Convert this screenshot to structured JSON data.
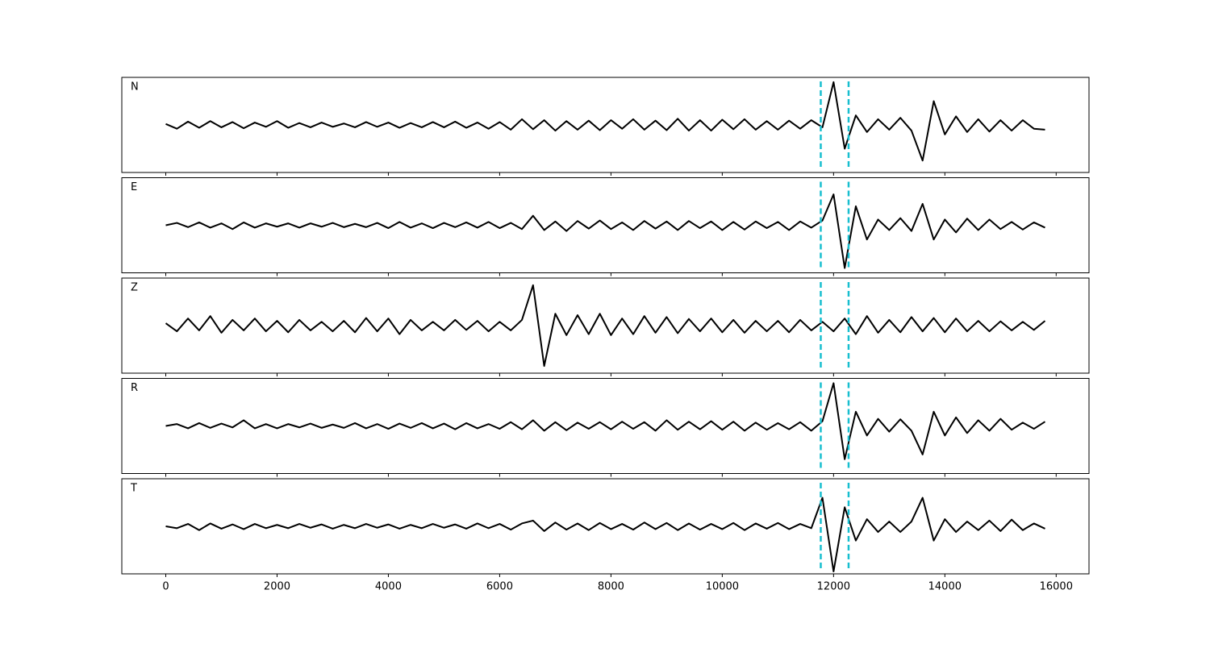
{
  "chart_data": {
    "type": "line",
    "x": [
      0,
      200,
      400,
      600,
      800,
      1000,
      1200,
      1400,
      1600,
      1800,
      2000,
      2200,
      2400,
      2600,
      2800,
      3000,
      3200,
      3400,
      3600,
      3800,
      4000,
      4200,
      4400,
      4600,
      4800,
      5000,
      5200,
      5400,
      5600,
      5800,
      6000,
      6200,
      6400,
      6600,
      6800,
      7000,
      7200,
      7400,
      7600,
      7800,
      8000,
      8200,
      8400,
      8600,
      8800,
      9000,
      9200,
      9400,
      9600,
      9800,
      10000,
      10200,
      10400,
      10600,
      10800,
      11000,
      11200,
      11400,
      11600,
      11800,
      12000,
      12200,
      12400,
      12600,
      12800,
      13000,
      13200,
      13400,
      13600,
      13800,
      14000,
      14200,
      14400,
      14600,
      14800,
      15000,
      15200,
      15400,
      15600,
      15800
    ],
    "series": [
      {
        "name": "N",
        "color": "#000000",
        "values": [
          0.02,
          -0.08,
          0.07,
          -0.06,
          0.08,
          -0.05,
          0.06,
          -0.07,
          0.05,
          -0.04,
          0.08,
          -0.06,
          0.04,
          -0.05,
          0.05,
          -0.04,
          0.03,
          -0.05,
          0.06,
          -0.04,
          0.05,
          -0.06,
          0.04,
          -0.05,
          0.06,
          -0.05,
          0.07,
          -0.06,
          0.05,
          -0.08,
          0.06,
          -0.1,
          0.12,
          -0.09,
          0.1,
          -0.12,
          0.08,
          -0.1,
          0.09,
          -0.11,
          0.1,
          -0.08,
          0.12,
          -0.1,
          0.09,
          -0.11,
          0.13,
          -0.12,
          0.1,
          -0.12,
          0.11,
          -0.09,
          0.12,
          -0.1,
          0.08,
          -0.1,
          0.09,
          -0.08,
          0.1,
          -0.05,
          0.9,
          -0.5,
          0.2,
          -0.15,
          0.12,
          -0.1,
          0.15,
          -0.12,
          -0.75,
          0.5,
          -0.2,
          0.18,
          -0.15,
          0.12,
          -0.14,
          0.1,
          -0.12,
          0.1,
          -0.08,
          -0.1
        ]
      },
      {
        "name": "E",
        "color": "#000000",
        "values": [
          0.0,
          0.05,
          -0.04,
          0.06,
          -0.05,
          0.04,
          -0.08,
          0.06,
          -0.05,
          0.04,
          -0.03,
          0.04,
          -0.05,
          0.04,
          -0.03,
          0.05,
          -0.04,
          0.03,
          -0.04,
          0.05,
          -0.06,
          0.07,
          -0.05,
          0.04,
          -0.06,
          0.05,
          -0.04,
          0.06,
          -0.05,
          0.07,
          -0.06,
          0.05,
          -0.08,
          0.2,
          -0.1,
          0.08,
          -0.12,
          0.09,
          -0.07,
          0.1,
          -0.08,
          0.06,
          -0.1,
          0.09,
          -0.07,
          0.08,
          -0.1,
          0.09,
          -0.06,
          0.08,
          -0.1,
          0.07,
          -0.09,
          0.08,
          -0.06,
          0.07,
          -0.1,
          0.08,
          -0.05,
          0.1,
          0.65,
          -0.9,
          0.4,
          -0.3,
          0.12,
          -0.1,
          0.15,
          -0.12,
          0.45,
          -0.3,
          0.12,
          -0.15,
          0.14,
          -0.1,
          0.12,
          -0.08,
          0.07,
          -0.09,
          0.06,
          -0.05
        ]
      },
      {
        "name": "Z",
        "color": "#000000",
        "values": [
          0.05,
          -0.12,
          0.15,
          -0.1,
          0.2,
          -0.15,
          0.12,
          -0.1,
          0.15,
          -0.12,
          0.1,
          -0.14,
          0.12,
          -0.1,
          0.08,
          -0.12,
          0.1,
          -0.14,
          0.16,
          -0.12,
          0.15,
          -0.18,
          0.12,
          -0.1,
          0.08,
          -0.1,
          0.12,
          -0.09,
          0.1,
          -0.12,
          0.08,
          -0.1,
          0.12,
          0.85,
          -0.85,
          0.25,
          -0.2,
          0.22,
          -0.18,
          0.25,
          -0.2,
          0.15,
          -0.18,
          0.2,
          -0.15,
          0.18,
          -0.16,
          0.14,
          -0.12,
          0.15,
          -0.14,
          0.12,
          -0.15,
          0.1,
          -0.12,
          0.1,
          -0.14,
          0.12,
          -0.1,
          0.08,
          -0.12,
          0.15,
          -0.18,
          0.2,
          -0.15,
          0.12,
          -0.14,
          0.18,
          -0.12,
          0.16,
          -0.14,
          0.15,
          -0.12,
          0.1,
          -0.12,
          0.09,
          -0.1,
          0.08,
          -0.09,
          0.1
        ]
      },
      {
        "name": "R",
        "color": "#000000",
        "values": [
          0.0,
          0.04,
          -0.05,
          0.06,
          -0.04,
          0.05,
          -0.03,
          0.12,
          -0.05,
          0.04,
          -0.05,
          0.04,
          -0.03,
          0.05,
          -0.04,
          0.03,
          -0.04,
          0.06,
          -0.05,
          0.04,
          -0.06,
          0.05,
          -0.04,
          0.06,
          -0.05,
          0.05,
          -0.07,
          0.06,
          -0.05,
          0.04,
          -0.06,
          0.08,
          -0.07,
          0.12,
          -0.1,
          0.08,
          -0.09,
          0.07,
          -0.06,
          0.08,
          -0.07,
          0.09,
          -0.06,
          0.08,
          -0.1,
          0.12,
          -0.08,
          0.09,
          -0.07,
          0.1,
          -0.08,
          0.09,
          -0.1,
          0.07,
          -0.08,
          0.06,
          -0.07,
          0.08,
          -0.1,
          0.1,
          0.9,
          -0.7,
          0.3,
          -0.2,
          0.15,
          -0.12,
          0.14,
          -0.1,
          -0.6,
          0.3,
          -0.2,
          0.18,
          -0.15,
          0.12,
          -0.1,
          0.15,
          -0.08,
          0.07,
          -0.06,
          0.09
        ]
      },
      {
        "name": "T",
        "color": "#000000",
        "values": [
          0.0,
          -0.04,
          0.05,
          -0.08,
          0.06,
          -0.05,
          0.04,
          -0.06,
          0.05,
          -0.04,
          0.03,
          -0.04,
          0.05,
          -0.03,
          0.04,
          -0.05,
          0.03,
          -0.04,
          0.05,
          -0.03,
          0.04,
          -0.05,
          0.03,
          -0.04,
          0.05,
          -0.03,
          0.04,
          -0.05,
          0.06,
          -0.04,
          0.05,
          -0.07,
          0.06,
          0.12,
          -0.1,
          0.08,
          -0.07,
          0.06,
          -0.08,
          0.07,
          -0.06,
          0.05,
          -0.07,
          0.08,
          -0.06,
          0.07,
          -0.08,
          0.06,
          -0.07,
          0.05,
          -0.06,
          0.07,
          -0.08,
          0.06,
          -0.05,
          0.07,
          -0.06,
          0.05,
          -0.04,
          0.6,
          -0.95,
          0.4,
          -0.3,
          0.15,
          -0.12,
          0.1,
          -0.12,
          0.1,
          0.6,
          -0.3,
          0.15,
          -0.12,
          0.1,
          -0.08,
          0.12,
          -0.1,
          0.14,
          -0.08,
          0.06,
          -0.05
        ]
      }
    ],
    "vlines": [
      11770,
      12270
    ],
    "vline_color": "#17becf",
    "xlim": [
      -790,
      16590
    ],
    "ylim": [
      -1,
      1
    ],
    "xticks": [
      0,
      2000,
      4000,
      6000,
      8000,
      10000,
      12000,
      14000,
      16000
    ]
  }
}
